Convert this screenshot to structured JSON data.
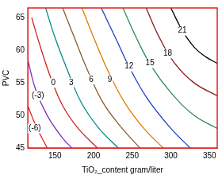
{
  "chart_data": {
    "type": "contour",
    "xlabel": "TiO₂_content gram/liter",
    "ylabel": "PVC",
    "xlim": [
      115,
      360
    ],
    "xticks": [
      150,
      200,
      250,
      300,
      350
    ],
    "ylim": [
      45,
      66.5
    ],
    "yticks": [
      45,
      50,
      55,
      60,
      65
    ],
    "grid": false,
    "series": [
      {
        "color": "#000000",
        "x": [
          300,
          315,
          330,
          345,
          360
        ],
        "values": [
          66.5,
          63,
          60.5,
          59,
          58
        ]
      },
      {
        "color": "#8b1a1a",
        "x": [
          268,
          285,
          305,
          330,
          360
        ],
        "values": [
          66.5,
          62,
          58,
          55,
          53
        ]
      },
      {
        "color": "#2e8b57",
        "x": [
          238,
          255,
          275,
          300,
          330,
          360
        ],
        "values": [
          66.5,
          62,
          57.5,
          53.5,
          50,
          48
        ]
      },
      {
        "color": "#1f3fbf",
        "x": [
          210,
          228,
          248,
          270,
          300,
          325
        ],
        "values": [
          66.5,
          62,
          57,
          52.5,
          48,
          45
        ]
      },
      {
        "color": "#e07b00",
        "x": [
          185,
          200,
          218,
          240,
          265,
          290
        ],
        "values": [
          66.5,
          62,
          57,
          52,
          48,
          45
        ]
      },
      {
        "color": "#8b5a2b",
        "x": [
          160,
          175,
          192,
          212,
          237,
          260
        ],
        "values": [
          66.5,
          62,
          57,
          52,
          48,
          45
        ]
      },
      {
        "color": "#008b8b",
        "x": [
          138,
          150,
          166,
          184,
          207,
          232
        ],
        "values": [
          66.5,
          62,
          57,
          52,
          48,
          45
        ]
      },
      {
        "color": "#d62020",
        "x": [
          120,
          130,
          144,
          160,
          180,
          205
        ],
        "values": [
          65,
          61,
          56,
          51.5,
          48,
          45
        ]
      },
      {
        "color": "#7b2fbf",
        "x": [
          115,
          125,
          140,
          160,
          172
        ],
        "values": [
          58.5,
          54,
          50,
          46.5,
          45
        ]
      },
      {
        "color": "#e02020",
        "x": [
          115,
          125,
          140
        ],
        "values": [
          51.5,
          48.5,
          45
        ]
      }
    ],
    "annotations": [
      {
        "text": "21",
        "x": 315,
        "y": 63
      },
      {
        "text": "18",
        "x": 296,
        "y": 59.5
      },
      {
        "text": "15",
        "x": 273,
        "y": 58
      },
      {
        "text": "12",
        "x": 246,
        "y": 57.5
      },
      {
        "text": "9",
        "x": 221,
        "y": 55.5
      },
      {
        "text": "6",
        "x": 197,
        "y": 55.5
      },
      {
        "text": "3",
        "x": 171,
        "y": 55
      },
      {
        "text": "0",
        "x": 148,
        "y": 55
      },
      {
        "text": "(-3)",
        "x": 128,
        "y": 53
      },
      {
        "text": "(-6)",
        "x": 124,
        "y": 48
      }
    ]
  }
}
